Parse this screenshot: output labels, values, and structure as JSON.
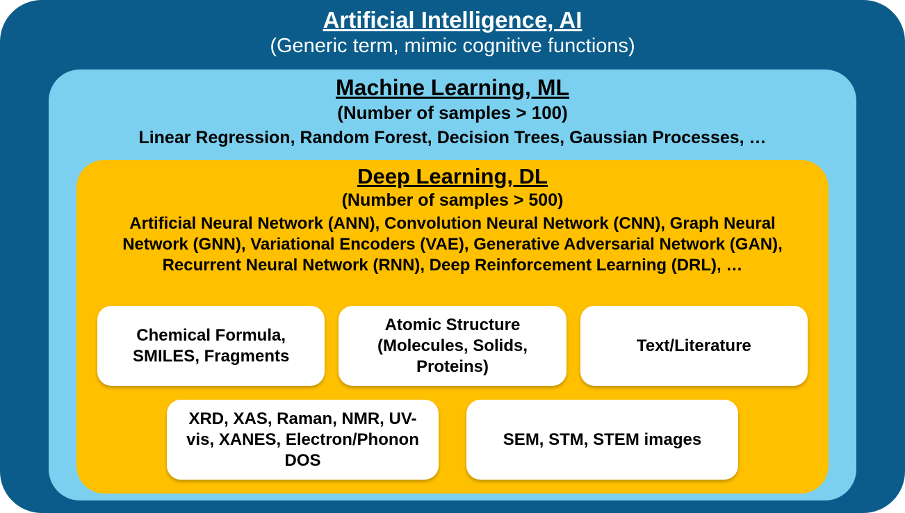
{
  "diagram": {
    "type": "nested-boxes",
    "background": "#ffffff",
    "outer": {
      "title": "Artificial Intelligence, AI",
      "subtitle": "(Generic term, mimic cognitive functions)",
      "bg_color": "#0b5c8a",
      "text_color": "#ffffff",
      "border_radius": 60,
      "title_fontsize": 33,
      "subtitle_fontsize": 29
    },
    "middle": {
      "title": "Machine Learning, ML",
      "subtitle": "(Number of samples > 100)",
      "examples": "Linear Regression, Random Forest, Decision Trees, Gaussian Processes, …",
      "bg_color": "#7cd0ef",
      "text_color": "#000000",
      "border_radius": 45,
      "title_fontsize": 32,
      "subtitle_fontsize": 26,
      "examples_fontsize": 25
    },
    "inner": {
      "title": "Deep Learning, DL",
      "subtitle": "(Number of samples > 500)",
      "examples": "Artificial Neural Network (ANN), Convolution Neural Network (CNN), Graph Neural Network (GNN), Variational Encoders (VAE), Generative Adversarial Network (GAN), Recurrent Neural Network (RNN), Deep Reinforcement Learning (DRL), …",
      "bg_color": "#ffc000",
      "text_color": "#000000",
      "border_radius": 40,
      "title_fontsize": 31,
      "subtitle_fontsize": 25,
      "examples_fontsize": 24,
      "cards_row1": [
        "Chemical Formula, SMILES, Fragments",
        "Atomic Structure (Molecules, Solids, Proteins)",
        "Text/Literature"
      ],
      "cards_row2": [
        "XRD, XAS, Raman, NMR, UV-vis, XANES, Electron/Phonon DOS",
        "SEM, STM, STEM images"
      ],
      "card_bg": "#ffffff",
      "card_text_color": "#000000",
      "card_border_radius": 20,
      "card_fontsize": 24,
      "card_shadow": "0 3px 5px rgba(0,0,0,0.25)"
    }
  }
}
